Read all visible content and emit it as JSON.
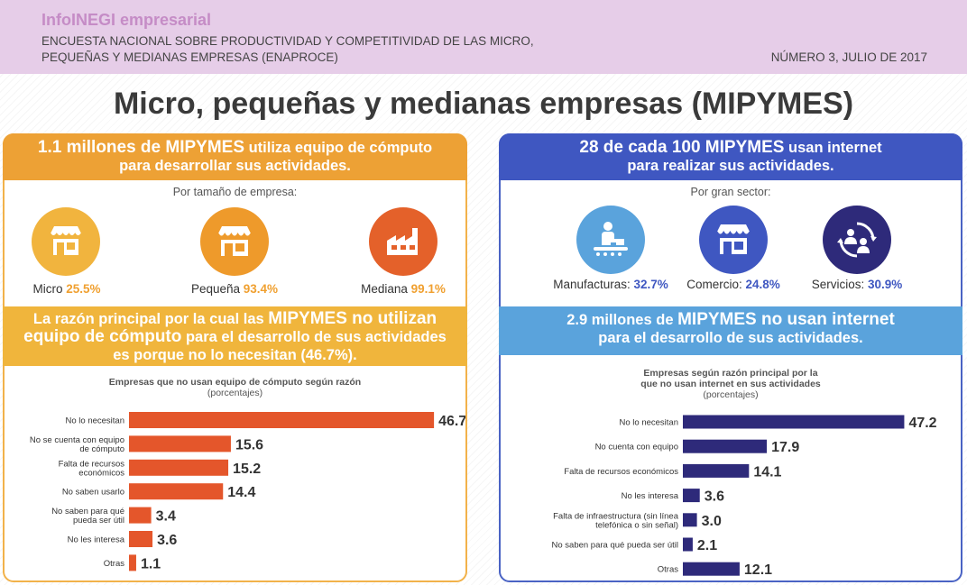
{
  "header": {
    "brand": "InfoINEGI empresarial",
    "survey_line1": "ENCUESTA NACIONAL SOBRE PRODUCTIVIDAD Y COMPETITIVIDAD DE LAS MICRO,",
    "survey_line2": "PEQUEÑAS Y MEDIANAS EMPRESAS (ENAPROCE)",
    "issue": "NÚMERO 3, JULIO DE 2017"
  },
  "title": "Micro, pequeñas y medianas empresas (MIPYMES)",
  "left_top": {
    "h1_bold": "1.1 millones de MIPYMES",
    "h1_rest": " utiliza equipo de cómputo",
    "h2": "para desarrollar sus actividades.",
    "subtitle": "Por tamaño de empresa:",
    "items": [
      {
        "label": "Micro",
        "value": "25.5%",
        "icon": "store-icon"
      },
      {
        "label": "Pequeña",
        "value": "93.4%",
        "icon": "shop-icon"
      },
      {
        "label": "Mediana",
        "value": "99.1%",
        "icon": "factory-icon"
      }
    ]
  },
  "left_bottom": {
    "l1a": "La razón principal por la cual las ",
    "l1b": "MIPYMES no utilizan",
    "l2a": "equipo de cómputo",
    "l2b": " para el desarrollo de sus actividades",
    "l3": "es porque no lo necesitan (46.7%).",
    "chart_title": "Empresas que no usan equipo de cómputo según razón",
    "chart_unit": "(porcentajes)"
  },
  "right_top": {
    "h1_bold": "28 de cada 100 MIPYMES",
    "h1_rest": " usan internet",
    "h2": "para realizar sus actividades.",
    "subtitle": "Por gran sector:",
    "items": [
      {
        "label": "Manufacturas:",
        "value": "32.7%",
        "icon": "conveyor-worker-icon"
      },
      {
        "label": "Comercio:",
        "value": "24.8%",
        "icon": "storefront-icon"
      },
      {
        "label": "Servicios:",
        "value": "30.9%",
        "icon": "people-cycle-icon"
      }
    ]
  },
  "right_bottom": {
    "h1a": "2.9 millones de ",
    "h1b": "MIPYMES no usan internet",
    "h2": "para el desarrollo de sus actividades.",
    "chart_title_1": "Empresas según razón principal por la",
    "chart_title_2": "que no usan internet en sus actividades",
    "chart_unit": "(porcentajes)"
  },
  "colors": {
    "orange": "#eda135",
    "yellow_orange": "#f0b53c",
    "bar_left": "#e4562b",
    "blue": "#3f57c1",
    "light_blue": "#5aa3dc",
    "bar_right": "#2e2a7a",
    "value_left": "#f0a030",
    "value_right": "#3f57c1"
  },
  "chart_data": [
    {
      "type": "bar",
      "orientation": "horizontal",
      "title": "Empresas que no usan equipo de cómputo según razón",
      "subtitle": "(porcentajes)",
      "categories": [
        "No lo necesitan",
        "No se cuenta con equipo de cómputo",
        "Falta de recursos económicos",
        "No saben usarlo",
        "No saben para qué pueda ser útil",
        "No les interesa",
        "Otras"
      ],
      "label_lines": [
        [
          "No lo necesitan"
        ],
        [
          "No se cuenta con equipo",
          "de cómputo"
        ],
        [
          "Falta de recursos",
          "económicos"
        ],
        [
          "No saben usarlo"
        ],
        [
          "No saben para qué",
          "pueda ser útil"
        ],
        [
          "No les interesa"
        ],
        [
          "Otras"
        ]
      ],
      "values": [
        46.7,
        15.6,
        15.2,
        14.4,
        3.4,
        3.6,
        1.1
      ],
      "value_labels": [
        "46.7",
        "15.6",
        "15.2",
        "14.4",
        "3.4",
        "3.6",
        "1.1"
      ],
      "xlim": [
        0,
        50
      ]
    },
    {
      "type": "bar",
      "orientation": "horizontal",
      "title": "Empresas según razón principal por la que no usan internet en sus actividades",
      "subtitle": "(porcentajes)",
      "categories": [
        "No lo necesitan",
        "No cuenta con equipo",
        "Falta de recursos económicos",
        "No les interesa",
        "Falta de infraestructura (sin línea telefónica o sin señal)",
        "No saben para qué pueda ser útil",
        "Otras"
      ],
      "label_lines": [
        [
          "No lo necesitan"
        ],
        [
          "No cuenta con equipo"
        ],
        [
          "Falta de recursos económicos"
        ],
        [
          "No les interesa"
        ],
        [
          "Falta de infraestructura (sin línea",
          "telefónica o sin señal)"
        ],
        [
          "No saben para qué pueda ser útil"
        ],
        [
          "Otras"
        ]
      ],
      "values": [
        47.2,
        17.9,
        14.1,
        3.6,
        3.0,
        2.1,
        12.1
      ],
      "value_labels": [
        "47.2",
        "17.9",
        "14.1",
        "3.6",
        "3.0",
        "2.1",
        "12.1"
      ],
      "xlim": [
        0,
        50
      ]
    }
  ]
}
